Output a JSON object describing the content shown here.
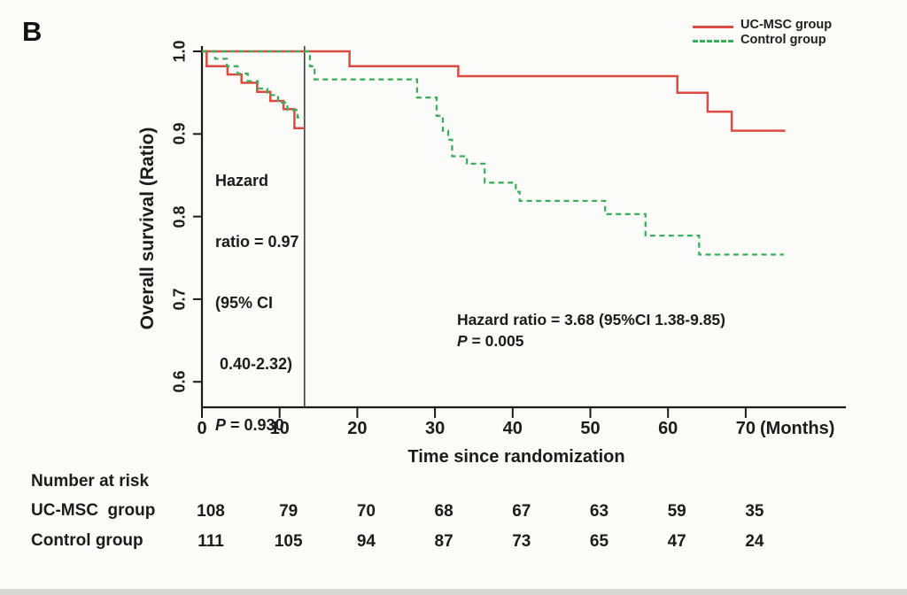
{
  "figure": {
    "panel_label": "B",
    "background": "#fbfbf9"
  },
  "legend": {
    "items": [
      {
        "label": "UC-MSC group",
        "color": "#dc4b41",
        "line_style": "solid"
      },
      {
        "label": "Control group",
        "color": "#3fae5c",
        "line_style": "dashed"
      }
    ]
  },
  "chart_data": {
    "type": "line",
    "subtype": "kaplan-meier-step",
    "title": "",
    "xlabel": "Time since randomization",
    "x_unit_label": "(Months)",
    "ylabel": "Overall survival (Ratio)",
    "xlim": [
      0,
      78
    ],
    "ylim": [
      0.56,
      1.0
    ],
    "x_ticks": [
      0,
      10,
      20,
      30,
      40,
      50,
      60,
      70
    ],
    "y_tick_values": [
      1.0,
      0.9,
      0.8,
      0.7,
      0.6
    ],
    "y_tick_labels": [
      "1.0",
      "0.9",
      "0.8",
      "0.7",
      "0.6"
    ],
    "grid": false,
    "legend_position": "top-right",
    "landmark_time_months": 13.2,
    "series": [
      {
        "name": "UC-MSC group (landmark 0-13 mo)",
        "color": "#dc4b41",
        "style": "solid",
        "steps": [
          [
            0,
            1.0
          ],
          [
            0.6,
            0.982
          ],
          [
            3.3,
            0.972
          ],
          [
            5.1,
            0.962
          ],
          [
            7.1,
            0.951
          ],
          [
            8.8,
            0.94
          ],
          [
            10.5,
            0.93
          ],
          [
            11.9,
            0.907
          ]
        ],
        "end": 13.2
      },
      {
        "name": "Control group (landmark 0-13 mo)",
        "color": "#3fae5c",
        "style": "dashed",
        "steps": [
          [
            0,
            1.0
          ],
          [
            1.7,
            0.991
          ],
          [
            3.2,
            0.982
          ],
          [
            4.6,
            0.973
          ],
          [
            5.9,
            0.964
          ],
          [
            7.2,
            0.955
          ],
          [
            8.4,
            0.947
          ],
          [
            9.8,
            0.938
          ],
          [
            11.0,
            0.929
          ],
          [
            12.3,
            0.92
          ]
        ],
        "end": 13.2
      },
      {
        "name": "UC-MSC group (overall)",
        "color": "#dc4b41",
        "style": "solid",
        "steps": [
          [
            0,
            1.0
          ],
          [
            19.0,
            0.982
          ],
          [
            33.0,
            0.97
          ],
          [
            61.2,
            0.95
          ],
          [
            65.1,
            0.927
          ],
          [
            68.2,
            0.904
          ]
        ],
        "end": 75.1
      },
      {
        "name": "Control group (overall)",
        "color": "#3fae5c",
        "style": "dashed",
        "steps": [
          [
            0,
            1.0
          ],
          [
            13.9,
            0.982
          ],
          [
            14.5,
            0.966
          ],
          [
            27.7,
            0.944
          ],
          [
            30.2,
            0.922
          ],
          [
            31.0,
            0.904
          ],
          [
            31.7,
            0.893
          ],
          [
            32.2,
            0.873
          ],
          [
            34.1,
            0.864
          ],
          [
            36.4,
            0.841
          ],
          [
            40.4,
            0.83
          ],
          [
            40.9,
            0.819
          ],
          [
            51.9,
            0.803
          ],
          [
            57.1,
            0.777
          ],
          [
            64.0,
            0.754
          ]
        ],
        "end": 74.9
      }
    ]
  },
  "annotations": {
    "landmark_hr": {
      "line1": "Hazard",
      "line2": "ratio = 0.97",
      "line3": "(95% CI",
      "line4": " 0.40-2.32)",
      "p_italic": "P",
      "p_rest": " = 0.930"
    },
    "overall_hr": {
      "line1": "Hazard ratio = 3.68 (95%CI 1.38-9.85)",
      "p_italic": "P",
      "p_rest": " = 0.005"
    }
  },
  "risk_table": {
    "title": "Number at risk",
    "time_points": [
      0,
      10,
      20,
      30,
      40,
      50,
      60,
      70
    ],
    "rows": [
      {
        "label": "UC-MSC  group",
        "values": [
          "108",
          "79",
          "70",
          "68",
          "67",
          "63",
          "59",
          "35"
        ]
      },
      {
        "label": "Control group",
        "values": [
          "111",
          "105",
          "94",
          "87",
          "73",
          "65",
          "47",
          "24"
        ]
      }
    ]
  }
}
